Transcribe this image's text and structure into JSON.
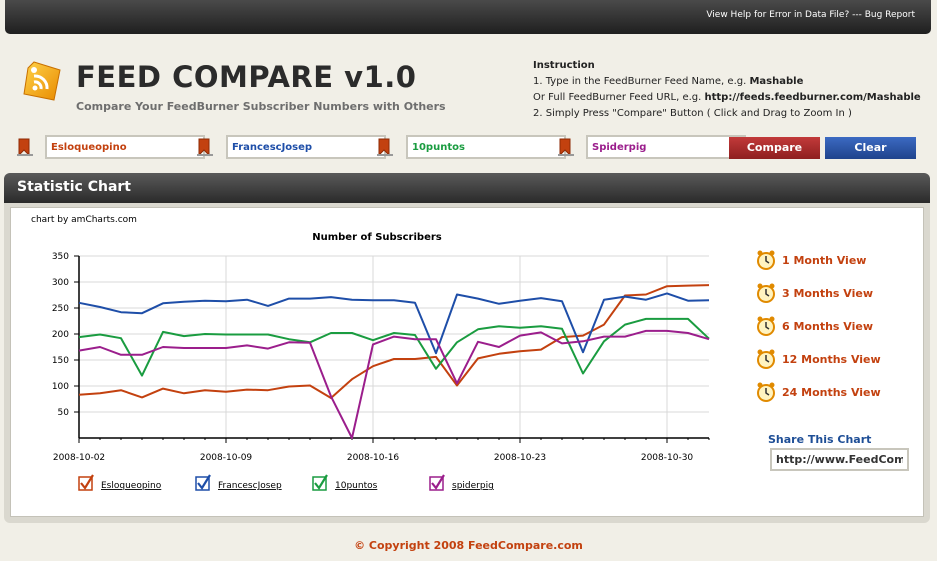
{
  "topbar": {
    "help_link": "View Help for Error in Data File?",
    "separator": " --- ",
    "bug_link": "Bug Report"
  },
  "header": {
    "title": "FEED COMPARE v1.0",
    "subtitle": "Compare Your FeedBurner Subscriber Numbers with Others"
  },
  "instruction": {
    "title": "Instruction",
    "line1_prefix": "1. Type in the FeedBurner Feed Name, e.g. ",
    "line1_example": "Mashable",
    "line2_prefix": "Or Full FeedBurner Feed URL, e.g. ",
    "line2_example": "http://feeds.feedburner.com/Mashable",
    "line3": "2. Simply Press \"Compare\" Button ( Click and Drag to Zoom In )"
  },
  "feeds": [
    {
      "value": "Esloqueopino",
      "color": "#c3410f"
    },
    {
      "value": "FrancescJosep",
      "color": "#1e4ea8"
    },
    {
      "value": "10puntos",
      "color": "#1a9c40"
    },
    {
      "value": "Spiderpig",
      "color": "#9b1e8c"
    }
  ],
  "buttons": {
    "compare": "Compare",
    "clear": "Clear"
  },
  "panel": {
    "title": "Statistic Chart"
  },
  "chart_credit": "chart by amCharts.com",
  "views": [
    "1 Month View",
    "3 Months View",
    "6 Months View",
    "12 Months View",
    "24 Months View"
  ],
  "share": {
    "title": "Share This Chart",
    "value": "http://www.FeedCompare.com"
  },
  "copyright": "© Copyright 2008 FeedCompare.com",
  "chart_data": {
    "type": "line",
    "title": "Number of Subscribers",
    "ylim": [
      0,
      350
    ],
    "yticks": [
      50,
      100,
      150,
      200,
      250,
      300,
      350
    ],
    "x_start": "2008-10-02",
    "x_ticks": [
      "2008-10-02",
      "2008-10-09",
      "2008-10-16",
      "2008-10-23",
      "2008-10-30"
    ],
    "grid": true,
    "legend_position": "bottom",
    "series": [
      {
        "name": "Esloqueopino",
        "color": "#c3410f",
        "values": [
          83,
          86,
          92,
          78,
          95,
          86,
          92,
          89,
          93,
          92,
          99,
          101,
          77,
          113,
          138,
          152,
          152,
          156,
          101,
          153,
          162,
          167,
          170,
          194,
          197,
          218,
          274,
          276,
          292,
          293,
          294
        ]
      },
      {
        "name": "FrancescJosep",
        "color": "#1e4ea8",
        "values": [
          260,
          252,
          242,
          240,
          259,
          262,
          264,
          263,
          266,
          254,
          268,
          268,
          271,
          266,
          265,
          265,
          260,
          163,
          276,
          268,
          258,
          264,
          269,
          263,
          165,
          266,
          272,
          266,
          278,
          264,
          265
        ]
      },
      {
        "name": "10puntos",
        "color": "#1a9c40",
        "values": [
          194,
          199,
          192,
          120,
          204,
          196,
          200,
          199,
          199,
          199,
          190,
          184,
          202,
          202,
          188,
          202,
          198,
          133,
          184,
          209,
          215,
          212,
          215,
          210,
          124,
          186,
          218,
          229,
          229,
          229,
          191
        ]
      },
      {
        "name": "spiderpig",
        "color": "#9b1e8c",
        "values": [
          168,
          175,
          160,
          160,
          175,
          173,
          173,
          173,
          178,
          172,
          184,
          183,
          80,
          0,
          180,
          195,
          190,
          190,
          105,
          185,
          175,
          197,
          203,
          182,
          186,
          195,
          195,
          206,
          206,
          202,
          190
        ]
      }
    ]
  }
}
